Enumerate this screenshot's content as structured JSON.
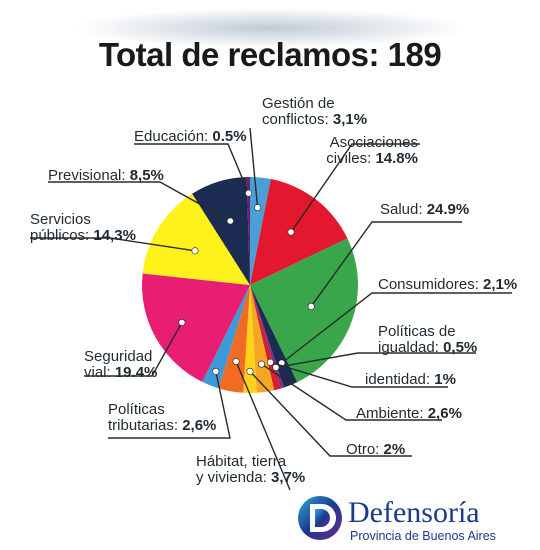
{
  "header": {
    "title": "Total de reclamos: 189"
  },
  "chart_data": {
    "type": "pie",
    "title": "Total de reclamos: 189",
    "total": 189,
    "slices": [
      {
        "name": "Gestión de conflictos",
        "label_lines": [
          "Gestión de",
          "conflictos:"
        ],
        "value_label": "3,1%",
        "value": 3.1,
        "color": "#4a9fd8"
      },
      {
        "name": "Asociaciones civiles",
        "label_lines": [
          "Asociaciones",
          "civiles:"
        ],
        "value_label": "14.8%",
        "value": 14.8,
        "color": "#e3172d"
      },
      {
        "name": "Salud",
        "label_lines": [
          "Salud:"
        ],
        "value_label": "24.9%",
        "value": 24.9,
        "color": "#3aa64c"
      },
      {
        "name": "Consumidores",
        "label_lines": [
          "Consumidores:"
        ],
        "value_label": "2,1%",
        "value": 2.1,
        "color": "#1c2b52"
      },
      {
        "name": "Políticas de igualdad",
        "label_lines": [
          "Políticas de",
          "igualdad:"
        ],
        "value_label": "0,5%",
        "value": 0.5,
        "color": "#7b2d8e"
      },
      {
        "name": "identidad",
        "label_lines": [
          "identidad:"
        ],
        "value_label": "1%",
        "value": 1.0,
        "color": "#d81e2b"
      },
      {
        "name": "Ambiente",
        "label_lines": [
          "Ambiente:"
        ],
        "value_label": "2,6%",
        "value": 2.6,
        "color": "#f5a623"
      },
      {
        "name": "Otro",
        "label_lines": [
          "Otro:"
        ],
        "value_label": "2%",
        "value": 2.0,
        "color": "#ffd21a"
      },
      {
        "name": "Hábitat, tierra y vivienda",
        "label_lines": [
          "Hábitat, tierra",
          "y vivienda:"
        ],
        "value_label": "3,7%",
        "value": 3.7,
        "color": "#f26b22"
      },
      {
        "name": "Políticas tributarias",
        "label_lines": [
          "Políticas",
          "tributarias:"
        ],
        "value_label": "2,6%",
        "value": 2.6,
        "color": "#3c9ad6"
      },
      {
        "name": "Seguridad vial",
        "label_lines": [
          "Seguridad",
          "vial:"
        ],
        "value_label": "19.4%",
        "value": 19.4,
        "color": "#e81e73"
      },
      {
        "name": "Servicios públicos",
        "label_lines": [
          "Servicios",
          "públicos:"
        ],
        "value_label": "14,3%",
        "value": 14.3,
        "color": "#fff21a"
      },
      {
        "name": "Previsional",
        "label_lines": [
          "Previsional:"
        ],
        "value_label": "8,5%",
        "value": 8.5,
        "color": "#1c2b52"
      },
      {
        "name": "Educación",
        "label_lines": [
          "Educación:"
        ],
        "value_label": "0.5%",
        "value": 0.5,
        "color": "#6a1f7a"
      }
    ]
  },
  "logo": {
    "name": "Defensoría",
    "subtitle": "Provincia de Buenos Aires"
  }
}
